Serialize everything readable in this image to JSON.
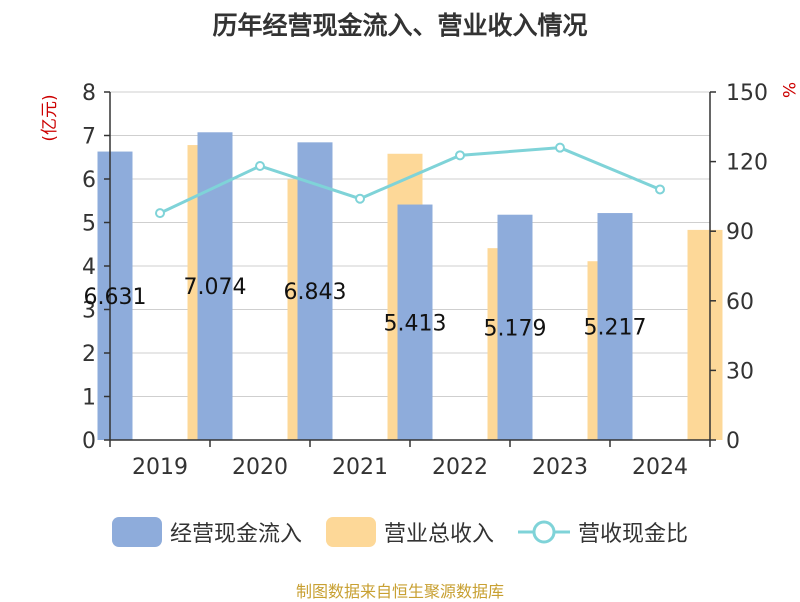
{
  "chart_data": {
    "type": "bar",
    "title": "历年经营现金流入、营业收入情况",
    "categories": [
      "2019",
      "2020",
      "2021",
      "2022",
      "2023",
      "2024"
    ],
    "left_axis": {
      "label": "(亿元)",
      "ylim": [
        0,
        8
      ],
      "ticks": [
        "0",
        "1",
        "2",
        "3",
        "4",
        "5",
        "6",
        "7",
        "8"
      ]
    },
    "right_axis": {
      "label": "%",
      "ylim": [
        0,
        150
      ],
      "ticks": [
        "0",
        "30",
        "60",
        "90",
        "120",
        "150"
      ]
    },
    "series": [
      {
        "name": "经营现金流入",
        "type": "bar",
        "axis": "left",
        "color": "#8eacdb",
        "values": [
          6.631,
          7.074,
          6.843,
          5.413,
          5.179,
          5.217
        ],
        "labels": [
          "6.631",
          "7.074",
          "6.843",
          "5.413",
          "5.179",
          "5.217"
        ]
      },
      {
        "name": "营业总收入",
        "type": "bar",
        "axis": "left",
        "color": "#fdd898",
        "values": [
          6.78,
          5.99,
          6.58,
          4.41,
          4.11,
          4.83
        ]
      },
      {
        "name": "营收现金比",
        "type": "line",
        "axis": "right",
        "color": "#7fd3d8",
        "values": [
          97.8,
          118.1,
          104.0,
          122.7,
          126.0,
          108.0
        ]
      }
    ],
    "grid": true,
    "legend_position": "bottom"
  },
  "source": "制图数据来自恒生聚源数据库"
}
